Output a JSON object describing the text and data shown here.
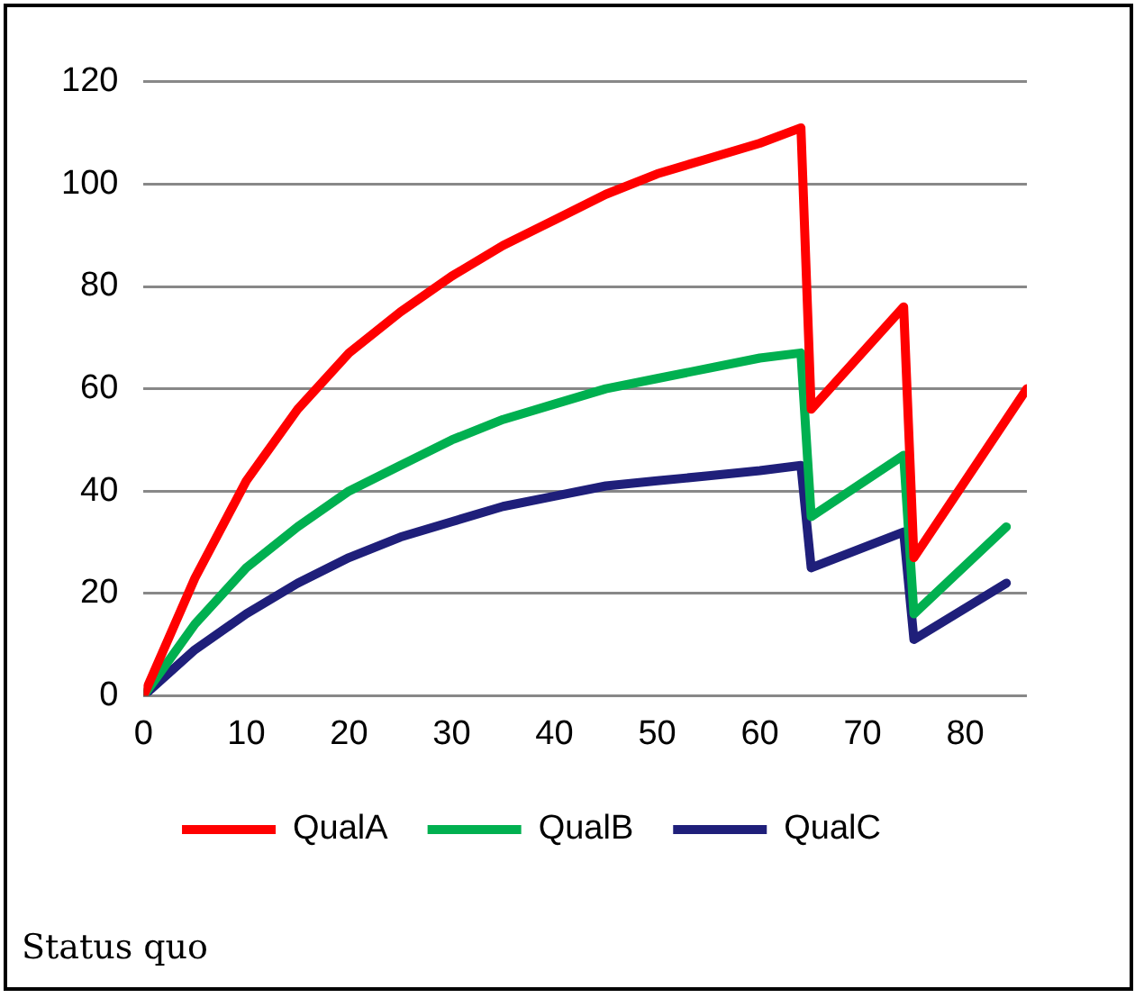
{
  "chart_data": {
    "type": "line",
    "series": [
      {
        "name": "QualA",
        "color": "#ff0000",
        "x": [
          0,
          5,
          10,
          15,
          20,
          25,
          30,
          35,
          40,
          45,
          50,
          55,
          60,
          64,
          65,
          74,
          75,
          86
        ],
        "values": [
          0,
          23,
          42,
          56,
          67,
          75,
          82,
          88,
          93,
          98,
          102,
          105,
          108,
          111,
          56,
          76,
          27,
          60
        ]
      },
      {
        "name": "QualB",
        "color": "#00b050",
        "x": [
          0,
          5,
          10,
          15,
          20,
          25,
          30,
          35,
          40,
          45,
          50,
          55,
          60,
          64,
          65,
          74,
          75,
          84
        ],
        "values": [
          0,
          14,
          25,
          33,
          40,
          45,
          50,
          54,
          57,
          60,
          62,
          64,
          66,
          67,
          35,
          47,
          16,
          33
        ]
      },
      {
        "name": "QualC",
        "color": "#1f1f7a",
        "x": [
          0,
          5,
          10,
          15,
          20,
          25,
          30,
          35,
          40,
          45,
          50,
          55,
          60,
          64,
          65,
          74,
          75,
          84
        ],
        "values": [
          0,
          9,
          16,
          22,
          27,
          31,
          34,
          37,
          39,
          41,
          42,
          43,
          44,
          45,
          25,
          32,
          11,
          22
        ]
      }
    ],
    "xlim": [
      0,
      86
    ],
    "xticks": [
      0,
      10,
      20,
      30,
      40,
      50,
      60,
      70,
      80
    ],
    "ylim": [
      0,
      120
    ],
    "yticks": [
      0,
      20,
      40,
      60,
      80,
      100,
      120
    ],
    "grid": "y",
    "legend": "bottom",
    "marker": "none",
    "line_style": "solid",
    "annotations": [
      "Status quo"
    ]
  }
}
